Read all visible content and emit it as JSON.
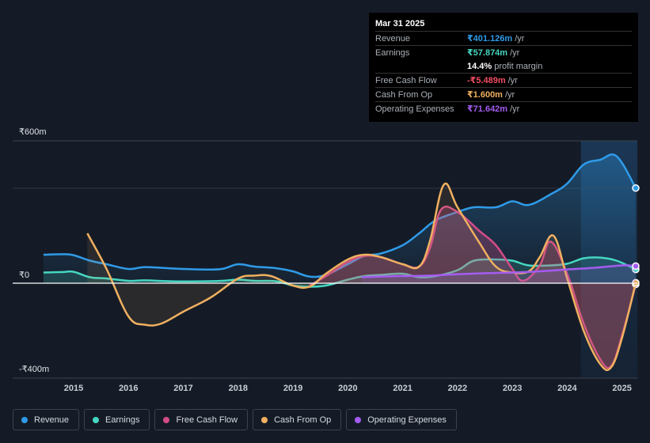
{
  "tooltip": {
    "date": "Mar 31 2025",
    "rows": [
      {
        "label": "Revenue",
        "value": "₹401.126m",
        "unit": "/yr",
        "color": "#2f9be8"
      },
      {
        "label": "Earnings",
        "value": "₹57.874m",
        "unit": "/yr",
        "color": "#46d6c2"
      },
      {
        "label": "",
        "value": "14.4%",
        "unit": "profit margin",
        "color": "#ffffff"
      },
      {
        "label": "Free Cash Flow",
        "value": "-₹5.489m",
        "unit": "/yr",
        "color": "#f04d62"
      },
      {
        "label": "Cash From Op",
        "value": "₹1.600m",
        "unit": "/yr",
        "color": "#f0b060"
      },
      {
        "label": "Operating Expenses",
        "value": "₹71.642m",
        "unit": "/yr",
        "color": "#a45cf0"
      }
    ]
  },
  "axis": {
    "y_top": "₹600m",
    "y_zero": "₹0",
    "y_bottom": "-₹400m"
  },
  "legend": [
    {
      "label": "Revenue",
      "color": "#2f9be8"
    },
    {
      "label": "Earnings",
      "color": "#46d6c2"
    },
    {
      "label": "Free Cash Flow",
      "color": "#d24c86"
    },
    {
      "label": "Cash From Op",
      "color": "#f0b060"
    },
    {
      "label": "Operating Expenses",
      "color": "#a45cf0"
    }
  ],
  "chart_data": {
    "type": "area",
    "title": "",
    "ylim": [
      -400,
      600
    ],
    "xlim": [
      2014.35,
      2025.25
    ],
    "x_ticks": [
      "2015",
      "2016",
      "2017",
      "2018",
      "2019",
      "2020",
      "2021",
      "2022",
      "2023",
      "2024",
      "2025"
    ],
    "highlight_start": 2024.25,
    "series": [
      {
        "name": "Revenue",
        "color": "#2f9be8",
        "x": [
          2014.45,
          2014.8,
          2015.0,
          2015.3,
          2015.6,
          2016.0,
          2016.3,
          2016.8,
          2017.3,
          2017.7,
          2018.0,
          2018.3,
          2018.7,
          2019.0,
          2019.3,
          2019.6,
          2020.0,
          2020.3,
          2020.6,
          2021.0,
          2021.3,
          2021.6,
          2022.0,
          2022.3,
          2022.7,
          2023.0,
          2023.3,
          2023.7,
          2024.0,
          2024.3,
          2024.6,
          2024.9,
          2025.25
        ],
        "y": [
          120,
          122,
          118,
          95,
          80,
          60,
          68,
          62,
          58,
          60,
          80,
          70,
          63,
          50,
          28,
          35,
          80,
          115,
          125,
          160,
          210,
          265,
          300,
          320,
          320,
          345,
          330,
          375,
          420,
          500,
          520,
          535,
          401
        ]
      },
      {
        "name": "Earnings",
        "color": "#46d6c2",
        "x": [
          2014.45,
          2014.8,
          2015.0,
          2015.3,
          2015.6,
          2016.0,
          2016.3,
          2016.8,
          2017.3,
          2017.7,
          2018.0,
          2018.3,
          2018.7,
          2019.0,
          2019.3,
          2019.6,
          2020.0,
          2020.3,
          2020.6,
          2021.0,
          2021.3,
          2021.6,
          2022.0,
          2022.3,
          2022.7,
          2023.0,
          2023.3,
          2023.7,
          2024.0,
          2024.3,
          2024.6,
          2024.9,
          2025.25
        ],
        "y": [
          45,
          47,
          48,
          25,
          20,
          10,
          12,
          8,
          8,
          10,
          15,
          10,
          8,
          -10,
          -15,
          -10,
          15,
          30,
          35,
          40,
          25,
          30,
          55,
          95,
          100,
          95,
          75,
          75,
          82,
          105,
          108,
          95,
          58
        ]
      },
      {
        "name": "Free Cash Flow",
        "color": "#d24c86",
        "x": [
          2019.3,
          2019.6,
          2020.0,
          2020.3,
          2020.6,
          2021.0,
          2021.3,
          2021.5,
          2021.7,
          2022.0,
          2022.4,
          2022.7,
          2023.0,
          2023.2,
          2023.5,
          2023.7,
          2024.0,
          2024.3,
          2024.6,
          2024.8,
          2025.0,
          2025.25
        ],
        "y": [
          -10,
          30,
          90,
          115,
          110,
          80,
          70,
          150,
          310,
          300,
          220,
          160,
          60,
          10,
          75,
          175,
          40,
          -170,
          -320,
          -350,
          -220,
          -5
        ]
      },
      {
        "name": "Cash From Op",
        "color": "#f0b060",
        "x": [
          2015.25,
          2015.6,
          2016.0,
          2016.3,
          2016.6,
          2017.0,
          2017.5,
          2018.0,
          2018.3,
          2018.6,
          2019.0,
          2019.3,
          2019.6,
          2020.0,
          2020.3,
          2020.6,
          2021.0,
          2021.3,
          2021.5,
          2021.75,
          2022.0,
          2022.4,
          2022.7,
          2023.0,
          2023.3,
          2023.5,
          2023.75,
          2024.0,
          2024.3,
          2024.6,
          2024.8,
          2025.0,
          2025.25
        ],
        "y": [
          210,
          60,
          -140,
          -175,
          -170,
          -120,
          -60,
          20,
          32,
          30,
          -10,
          -15,
          40,
          100,
          120,
          110,
          80,
          70,
          180,
          415,
          320,
          170,
          70,
          45,
          50,
          110,
          200,
          20,
          -200,
          -340,
          -355,
          -230,
          2
        ]
      },
      {
        "name": "Operating Expenses",
        "color": "#a45cf0",
        "x": [
          2020.25,
          2020.6,
          2021.0,
          2021.5,
          2022.0,
          2022.5,
          2023.0,
          2023.5,
          2024.0,
          2024.5,
          2025.0,
          2025.25
        ],
        "y": [
          25,
          28,
          30,
          32,
          38,
          42,
          45,
          50,
          58,
          65,
          75,
          72
        ]
      }
    ]
  }
}
